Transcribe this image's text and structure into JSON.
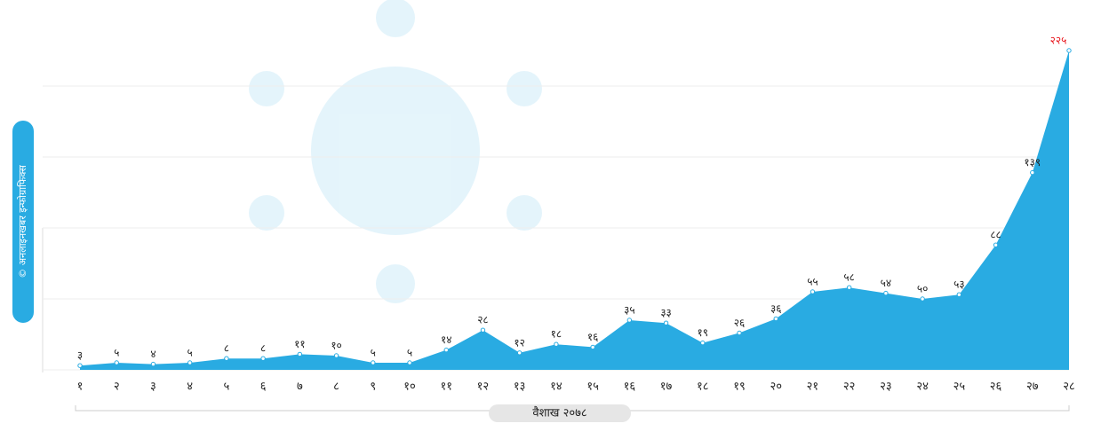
{
  "chart_data": {
    "type": "area",
    "side_note": "© अनलाइनखबर इन्फोग्राफिक्स",
    "x_label": "वैशाख २०७८",
    "categories": [
      "१",
      "२",
      "३",
      "४",
      "५",
      "६",
      "७",
      "८",
      "९",
      "१०",
      "११",
      "१२",
      "१३",
      "१४",
      "१५",
      "१६",
      "१७",
      "१८",
      "१९",
      "२०",
      "२१",
      "२२",
      "२३",
      "२४",
      "२५",
      "२६",
      "२७",
      "२८"
    ],
    "values": [
      3,
      5,
      4,
      5,
      8,
      8,
      11,
      10,
      5,
      5,
      14,
      28,
      12,
      18,
      16,
      35,
      33,
      19,
      26,
      36,
      55,
      58,
      54,
      50,
      53,
      88,
      139,
      225
    ],
    "value_labels": [
      "३",
      "५",
      "४",
      "५",
      "८",
      "८",
      "११",
      "१०",
      "५",
      "५",
      "१४",
      "२८",
      "१२",
      "१८",
      "१६",
      "३५",
      "३३",
      "१९",
      "२६",
      "३६",
      "५५",
      "५८",
      "५४",
      "५०",
      "५३",
      "८८",
      "१३९",
      "२२५"
    ],
    "color": "#29abe2",
    "last_label_color": "#e8141b",
    "ylim": [
      0,
      225
    ],
    "yticks": [
      0,
      50,
      100,
      150,
      200
    ],
    "grid": true
  }
}
